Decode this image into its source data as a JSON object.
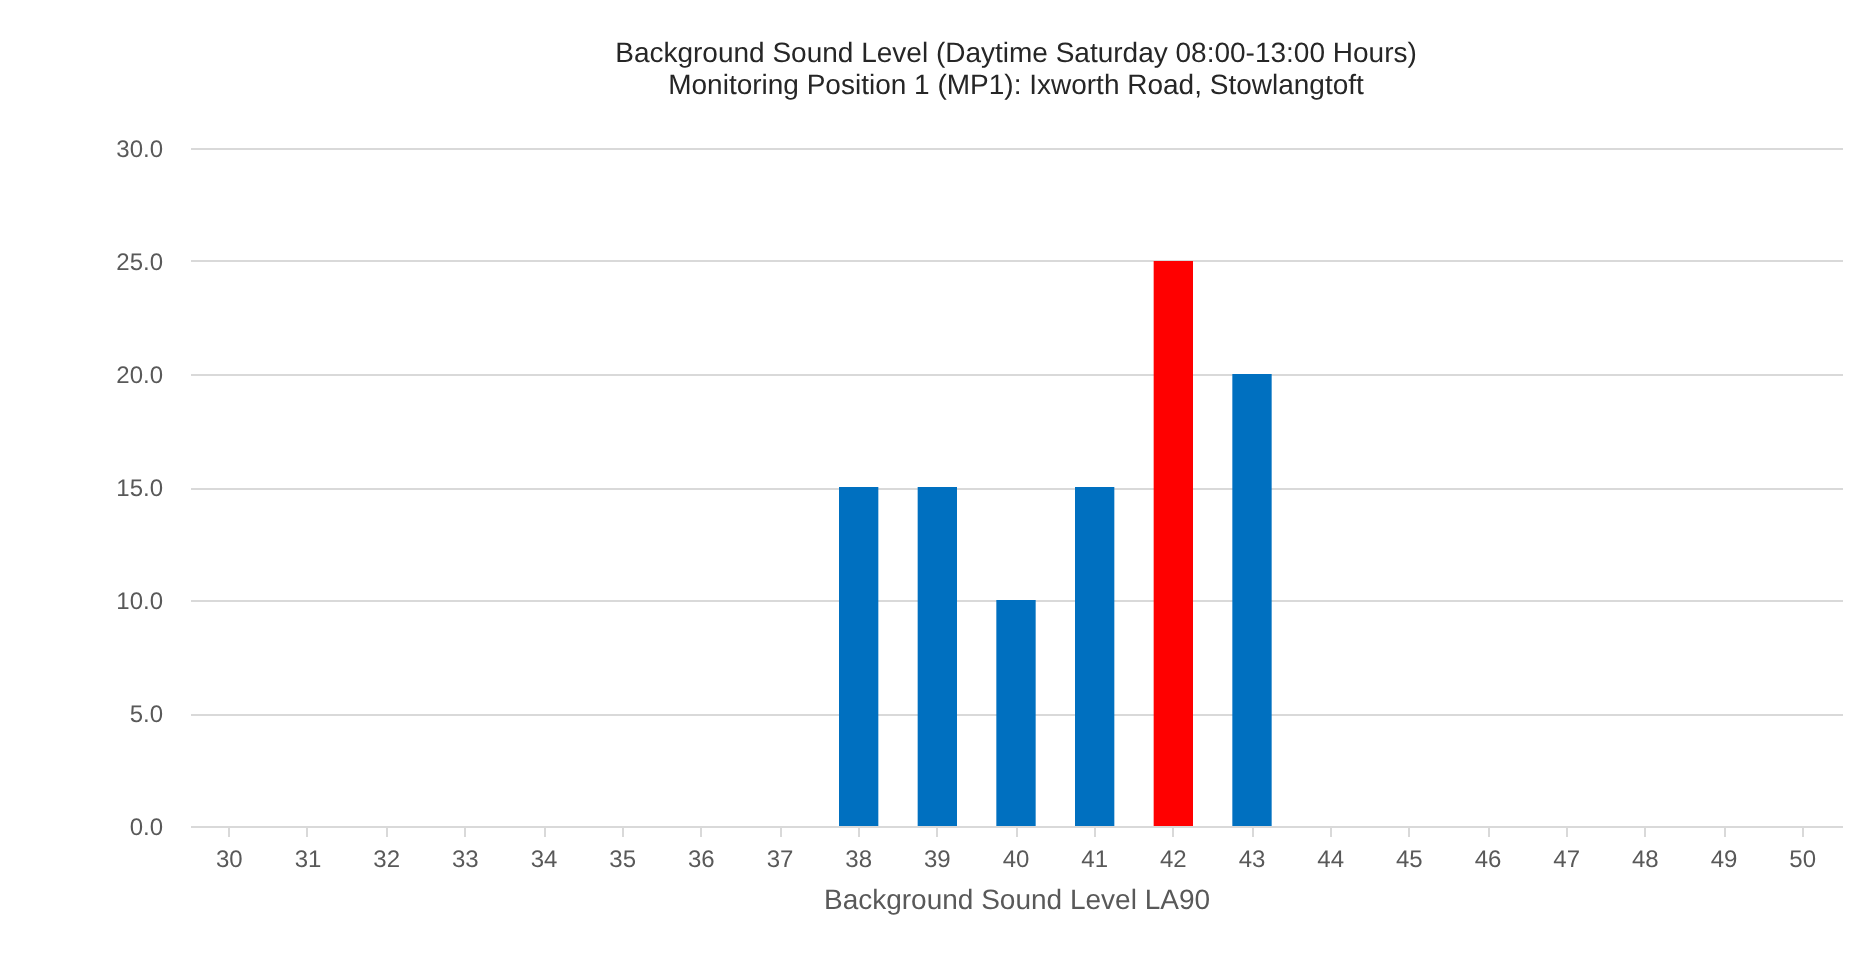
{
  "chart_data": {
    "type": "bar",
    "title": "Background Sound Level (Daytime Saturday 08:00-13:00 Hours)",
    "subtitle": "Monitoring Position 1 (MP1): Ixworth Road, Stowlangtoft",
    "xlabel": "Background Sound Level LA90",
    "categories": [
      "30",
      "31",
      "32",
      "33",
      "34",
      "35",
      "36",
      "37",
      "38",
      "39",
      "40",
      "41",
      "42",
      "43",
      "44",
      "45",
      "46",
      "47",
      "48",
      "49",
      "50"
    ],
    "values": [
      0,
      0,
      0,
      0,
      0,
      0,
      0,
      0,
      15,
      15,
      10,
      15,
      25,
      20,
      0,
      0,
      0,
      0,
      0,
      0,
      0
    ],
    "colors": [
      "#0070c0",
      "#0070c0",
      "#0070c0",
      "#0070c0",
      "#0070c0",
      "#0070c0",
      "#0070c0",
      "#0070c0",
      "#0070c0",
      "#0070c0",
      "#0070c0",
      "#0070c0",
      "#ff0000",
      "#0070c0",
      "#0070c0",
      "#0070c0",
      "#0070c0",
      "#0070c0",
      "#0070c0",
      "#0070c0",
      "#0070c0"
    ],
    "ylim": [
      0,
      30
    ],
    "yticks": [
      {
        "value": 0,
        "label": "0.0"
      },
      {
        "value": 5,
        "label": "5.0"
      },
      {
        "value": 10,
        "label": "10.0"
      },
      {
        "value": 15,
        "label": "15.0"
      },
      {
        "value": 20,
        "label": "20.0"
      },
      {
        "value": 25,
        "label": "25.0"
      },
      {
        "value": 30,
        "label": "30.0"
      }
    ],
    "grid": "y"
  }
}
